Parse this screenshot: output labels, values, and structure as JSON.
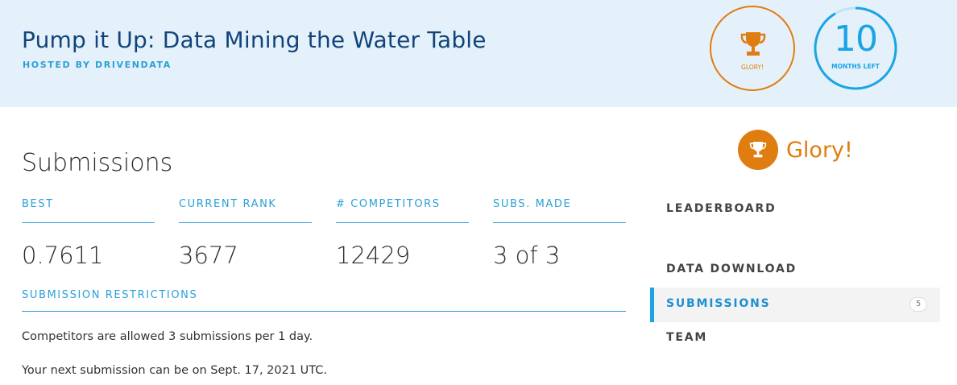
{
  "header": {
    "title": "Pump it Up: Data Mining the Water Table",
    "host": "HOSTED BY DRIVENDATA"
  },
  "badges": {
    "glory_label": "GLORY!",
    "time_number": "10",
    "time_label": "MONTHS LEFT"
  },
  "main": {
    "title": "Submissions",
    "stats": [
      {
        "label": "BEST",
        "value": "0.7611"
      },
      {
        "label": "CURRENT RANK",
        "value": "3677"
      },
      {
        "label": "# COMPETITORS",
        "value": "12429"
      },
      {
        "label": "SUBS. MADE",
        "value": "3 of 3"
      }
    ],
    "restrictions_label": "SUBMISSION RESTRICTIONS",
    "restriction_text": "Competitors are allowed 3 submissions per 1 day.",
    "next_submission_text": "Your next submission can be on Sept. 17, 2021 UTC."
  },
  "sidebar": {
    "prize": "Glory!",
    "nav": [
      {
        "label": "LEADERBOARD"
      },
      {
        "label": "DATA DOWNLOAD"
      },
      {
        "label": "SUBMISSIONS",
        "count": "5",
        "active": true
      },
      {
        "label": "TEAM"
      }
    ]
  },
  "colors": {
    "accent_blue": "#2ba0d8",
    "title_navy": "#12447a",
    "glory_orange": "#e07d10",
    "banner_bg": "#e4f1fa"
  }
}
